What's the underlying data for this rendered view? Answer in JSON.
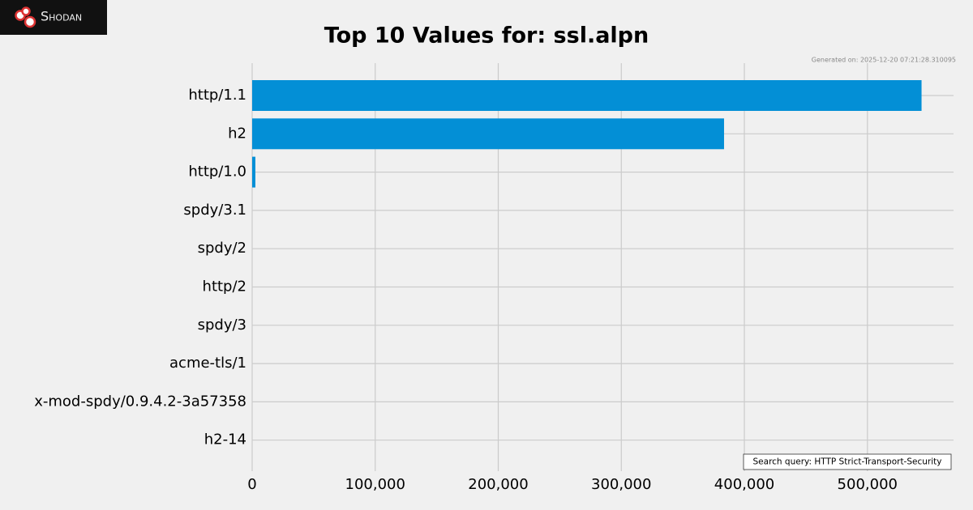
{
  "brand": "Shodan",
  "chart_data": {
    "type": "barh",
    "title": "Top 10 Values for: ssl.alpn",
    "generated": "Generated on: 2025-12-20 07:21:28.310095",
    "query": "Search query: HTTP Strict-Transport-Security",
    "categories": [
      "http/1.1",
      "h2",
      "http/1.0",
      "spdy/3.1",
      "spdy/2",
      "http/2",
      "spdy/3",
      "acme-tls/1",
      "x-mod-spdy/0.9.4.2-3a57358",
      "h2-14"
    ],
    "values": [
      544000,
      383500,
      2600,
      0,
      0,
      0,
      0,
      0,
      0,
      0
    ],
    "color": "#038fd6",
    "xlim": [
      0,
      570000
    ],
    "xticks": [
      0,
      {
        "value": 100000,
        "label": "100,000"
      },
      {
        "value": 200000,
        "label": "200,000"
      },
      {
        "value": 300000,
        "label": "300,000"
      },
      {
        "value": 400000,
        "label": "400,000"
      },
      {
        "value": 500000,
        "label": "500,000"
      }
    ],
    "grid": true
  }
}
